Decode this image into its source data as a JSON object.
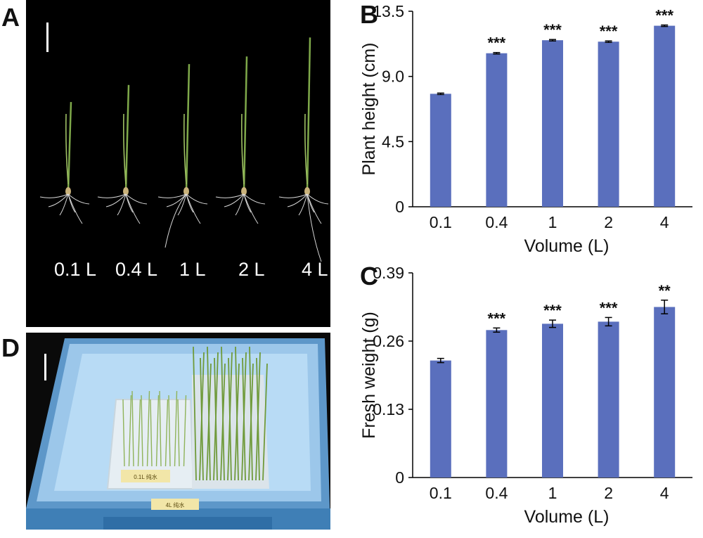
{
  "panels": {
    "a": "A",
    "b": "B",
    "c": "C",
    "d": "D"
  },
  "photo_a": {
    "labels": [
      "0.1 L",
      "0.4 L",
      "1 L",
      "2 L",
      "4 L"
    ],
    "plant_heights_relative": [
      0.47,
      0.56,
      0.67,
      0.71,
      0.81
    ]
  },
  "photo_d": {
    "tray_tag_left": "0.1L 纯水",
    "tray_tag_right": "4L 纯水"
  },
  "chart_data": [
    {
      "type": "bar",
      "panel": "B",
      "categories": [
        "0.1",
        "0.4",
        "1",
        "2",
        "4"
      ],
      "values": [
        7.8,
        10.6,
        11.5,
        11.4,
        12.5
      ],
      "errors": [
        0.05,
        0.05,
        0.05,
        0.05,
        0.05
      ],
      "significance": [
        "",
        "***",
        "***",
        "***",
        "***"
      ],
      "xlabel": "Volume (L)",
      "ylabel": "Plant height (cm)",
      "ylim": [
        0,
        13.5
      ],
      "yticks": [
        "0",
        "4.5",
        "9.0",
        "13.5"
      ],
      "bar_color": "#5a6fbd"
    },
    {
      "type": "bar",
      "panel": "C",
      "categories": [
        "0.1",
        "0.4",
        "1",
        "2",
        "4"
      ],
      "values": [
        0.223,
        0.281,
        0.293,
        0.297,
        0.325
      ],
      "errors": [
        0.004,
        0.004,
        0.007,
        0.008,
        0.013
      ],
      "significance": [
        "",
        "***",
        "***",
        "***",
        "**"
      ],
      "xlabel": "Volume (L)",
      "ylabel": "Fresh weight (g)",
      "ylim": [
        0,
        0.39
      ],
      "yticks": [
        "0",
        "0.13",
        "0.26",
        "0.39"
      ],
      "bar_color": "#5a6fbd"
    }
  ]
}
